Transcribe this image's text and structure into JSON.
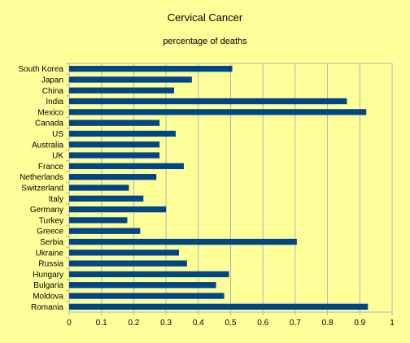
{
  "chart_data": {
    "type": "bar",
    "orientation": "horizontal",
    "title": "Cervical Cancer",
    "subtitle": "percentage of deaths",
    "xlabel": "",
    "ylabel": "",
    "xlim": [
      0,
      1
    ],
    "ticks": [
      "0",
      "0.1",
      "0.2",
      "0.3",
      "0.4",
      "0.5",
      "0.6",
      "0.7",
      "0.8",
      "0.9",
      "1"
    ],
    "grid": true,
    "bar_color": "#004586",
    "background_color": "#ffff99",
    "categories": [
      "South Korea",
      "Japan",
      "China",
      "India",
      "Mexico",
      "Canada",
      "US",
      "Australia",
      "UK",
      "France",
      "Netherlands",
      "Switzerland",
      "Italy",
      "Germany",
      "Turkey",
      "Greece",
      "Serbia",
      "Ukraine",
      "Russia",
      "Hungary",
      "Bulgaria",
      "Moldova",
      "Romania"
    ],
    "values": [
      0.505,
      0.38,
      0.325,
      0.86,
      0.92,
      0.28,
      0.33,
      0.28,
      0.28,
      0.355,
      0.27,
      0.185,
      0.23,
      0.3,
      0.18,
      0.22,
      0.705,
      0.34,
      0.365,
      0.495,
      0.455,
      0.48,
      0.925
    ]
  }
}
